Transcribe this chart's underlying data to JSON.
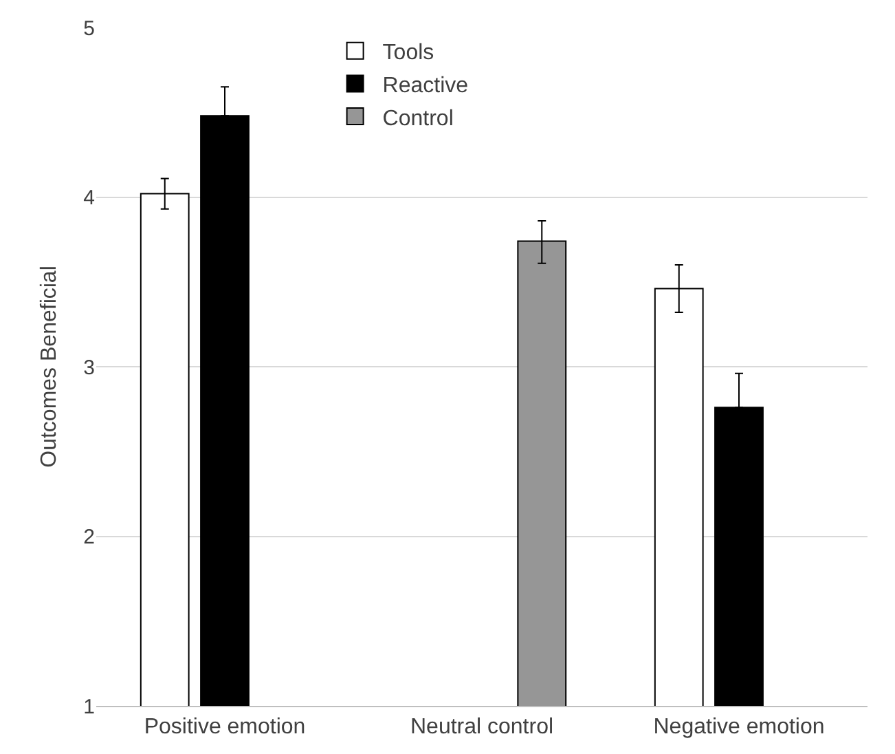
{
  "chart_data": {
    "type": "bar",
    "ylabel": "Outcomes Beneficial",
    "categories": [
      "Positive emotion",
      "Neutral control",
      "Negative emotion"
    ],
    "series": [
      {
        "name": "Tools",
        "color": "#ffffff",
        "values": [
          4.02,
          null,
          3.46
        ],
        "errors": [
          [
            3.93,
            4.11
          ],
          null,
          [
            3.32,
            3.6
          ]
        ]
      },
      {
        "name": "Reactive",
        "color": "#000000",
        "values": [
          4.48,
          null,
          2.76
        ],
        "errors": [
          [
            4.48,
            4.65
          ],
          null,
          [
            2.76,
            2.96
          ]
        ]
      },
      {
        "name": "Control",
        "color": "#969696",
        "values": [
          null,
          3.74,
          null
        ],
        "errors": [
          null,
          [
            3.61,
            3.86
          ],
          null
        ]
      }
    ],
    "ylim": [
      1,
      5
    ],
    "yticks": [
      1,
      2,
      3,
      4,
      5
    ],
    "grid": "y",
    "legend": "top"
  }
}
